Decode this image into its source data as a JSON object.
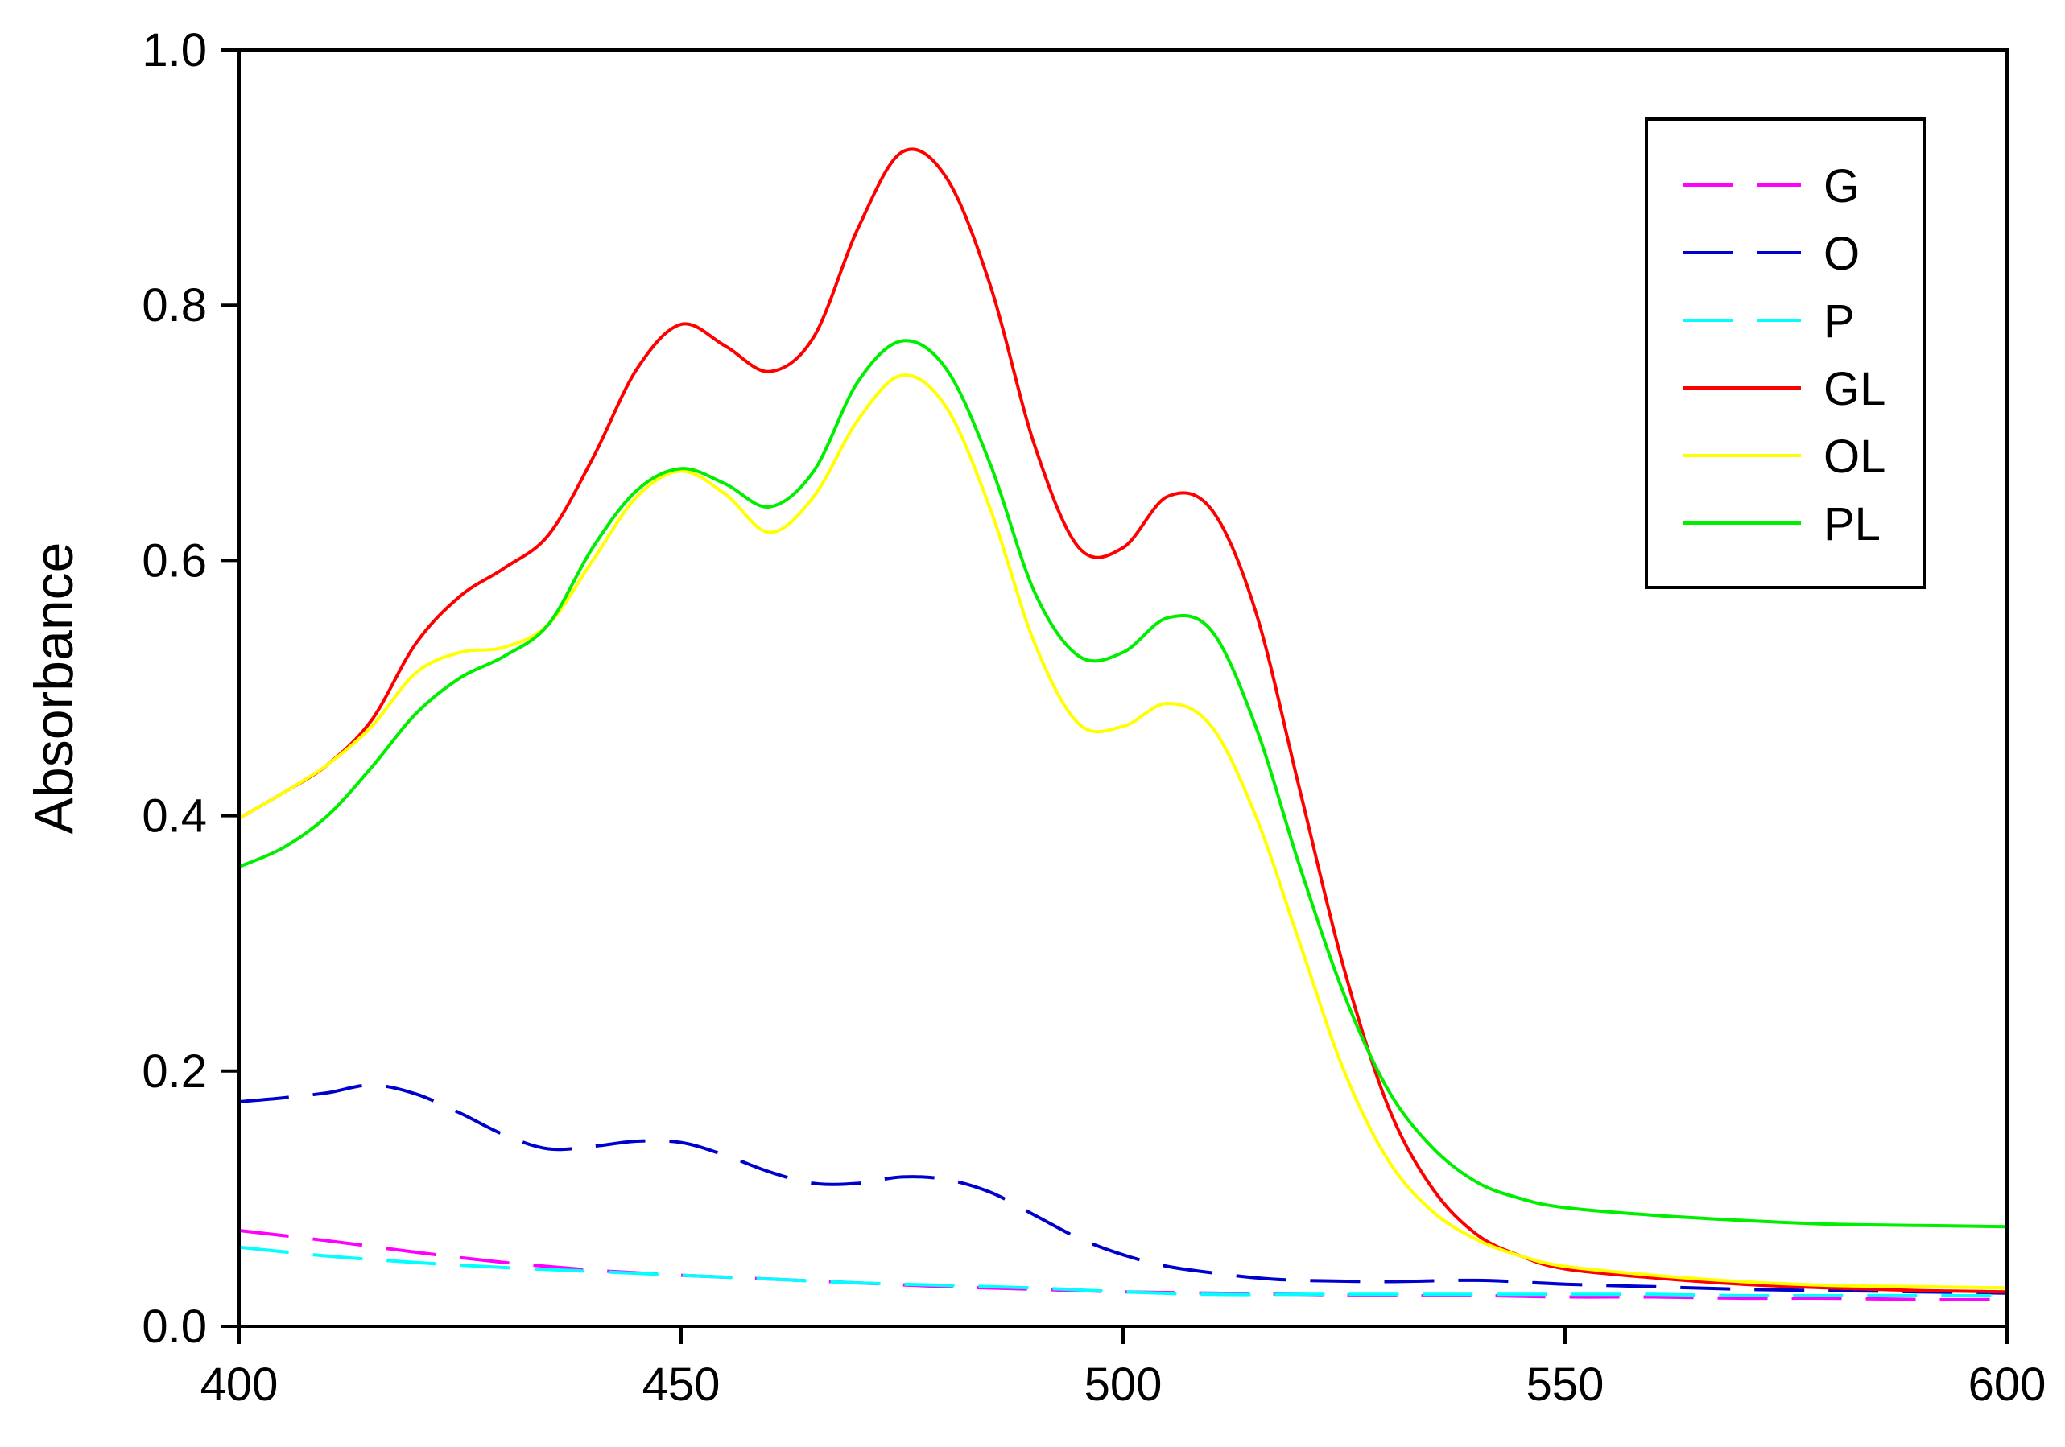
{
  "chart_data": {
    "type": "line",
    "title": "",
    "xlabel": "",
    "ylabel": "Absorbance",
    "xlim": [
      400,
      600
    ],
    "ylim": [
      0.0,
      1.0
    ],
    "x_ticks": [
      400,
      450,
      500,
      550,
      600
    ],
    "y_ticks": [
      "0.0",
      "0.2",
      "0.4",
      "0.6",
      "0.8",
      "1.0"
    ],
    "grid": false,
    "legend_position": "top-right",
    "series": [
      {
        "name": "G",
        "color": "#ff00ff",
        "dash": "dashed",
        "points": [
          [
            400,
            0.075
          ],
          [
            410,
            0.067
          ],
          [
            420,
            0.058
          ],
          [
            430,
            0.05
          ],
          [
            440,
            0.044
          ],
          [
            450,
            0.04
          ],
          [
            460,
            0.037
          ],
          [
            470,
            0.034
          ],
          [
            480,
            0.031
          ],
          [
            490,
            0.029
          ],
          [
            500,
            0.027
          ],
          [
            510,
            0.026
          ],
          [
            520,
            0.025
          ],
          [
            530,
            0.024
          ],
          [
            540,
            0.024
          ],
          [
            550,
            0.023
          ],
          [
            560,
            0.023
          ],
          [
            570,
            0.022
          ],
          [
            580,
            0.022
          ],
          [
            590,
            0.021
          ],
          [
            600,
            0.021
          ]
        ]
      },
      {
        "name": "O",
        "color": "#0000cc",
        "dash": "dashed",
        "points": [
          [
            400,
            0.176
          ],
          [
            405,
            0.179
          ],
          [
            410,
            0.183
          ],
          [
            415,
            0.189
          ],
          [
            420,
            0.182
          ],
          [
            425,
            0.167
          ],
          [
            430,
            0.15
          ],
          [
            435,
            0.139
          ],
          [
            440,
            0.141
          ],
          [
            445,
            0.145
          ],
          [
            450,
            0.144
          ],
          [
            455,
            0.134
          ],
          [
            460,
            0.121
          ],
          [
            465,
            0.112
          ],
          [
            470,
            0.112
          ],
          [
            475,
            0.117
          ],
          [
            480,
            0.115
          ],
          [
            485,
            0.105
          ],
          [
            490,
            0.087
          ],
          [
            495,
            0.069
          ],
          [
            500,
            0.056
          ],
          [
            505,
            0.047
          ],
          [
            510,
            0.042
          ],
          [
            515,
            0.038
          ],
          [
            520,
            0.036
          ],
          [
            530,
            0.035
          ],
          [
            540,
            0.036
          ],
          [
            550,
            0.033
          ],
          [
            560,
            0.031
          ],
          [
            570,
            0.029
          ],
          [
            580,
            0.028
          ],
          [
            590,
            0.027
          ],
          [
            600,
            0.026
          ]
        ]
      },
      {
        "name": "P",
        "color": "#00ffff",
        "dash": "dashed",
        "points": [
          [
            400,
            0.062
          ],
          [
            410,
            0.055
          ],
          [
            420,
            0.05
          ],
          [
            430,
            0.046
          ],
          [
            440,
            0.043
          ],
          [
            450,
            0.04
          ],
          [
            460,
            0.037
          ],
          [
            470,
            0.034
          ],
          [
            480,
            0.032
          ],
          [
            490,
            0.03
          ],
          [
            500,
            0.027
          ],
          [
            510,
            0.025
          ],
          [
            520,
            0.025
          ],
          [
            530,
            0.025
          ],
          [
            540,
            0.025
          ],
          [
            550,
            0.025
          ],
          [
            560,
            0.025
          ],
          [
            570,
            0.024
          ],
          [
            580,
            0.024
          ],
          [
            590,
            0.024
          ],
          [
            600,
            0.024
          ]
        ]
      },
      {
        "name": "GL",
        "color": "#ff0000",
        "dash": "solid",
        "points": [
          [
            400,
            0.398
          ],
          [
            405,
            0.418
          ],
          [
            410,
            0.44
          ],
          [
            415,
            0.475
          ],
          [
            420,
            0.535
          ],
          [
            425,
            0.572
          ],
          [
            430,
            0.594
          ],
          [
            435,
            0.62
          ],
          [
            440,
            0.68
          ],
          [
            445,
            0.75
          ],
          [
            450,
            0.785
          ],
          [
            455,
            0.768
          ],
          [
            460,
            0.748
          ],
          [
            465,
            0.775
          ],
          [
            470,
            0.86
          ],
          [
            475,
            0.92
          ],
          [
            480,
            0.9
          ],
          [
            485,
            0.815
          ],
          [
            490,
            0.69
          ],
          [
            495,
            0.61
          ],
          [
            500,
            0.61
          ],
          [
            505,
            0.65
          ],
          [
            510,
            0.64
          ],
          [
            515,
            0.56
          ],
          [
            520,
            0.42
          ],
          [
            525,
            0.28
          ],
          [
            530,
            0.172
          ],
          [
            535,
            0.108
          ],
          [
            540,
            0.072
          ],
          [
            545,
            0.055
          ],
          [
            550,
            0.045
          ],
          [
            560,
            0.038
          ],
          [
            570,
            0.033
          ],
          [
            580,
            0.03
          ],
          [
            590,
            0.028
          ],
          [
            600,
            0.027
          ]
        ]
      },
      {
        "name": "OL",
        "color": "#ffff00",
        "dash": "solid",
        "points": [
          [
            400,
            0.398
          ],
          [
            405,
            0.418
          ],
          [
            410,
            0.44
          ],
          [
            415,
            0.47
          ],
          [
            420,
            0.512
          ],
          [
            425,
            0.528
          ],
          [
            430,
            0.532
          ],
          [
            435,
            0.55
          ],
          [
            440,
            0.6
          ],
          [
            445,
            0.65
          ],
          [
            450,
            0.67
          ],
          [
            455,
            0.652
          ],
          [
            460,
            0.622
          ],
          [
            465,
            0.65
          ],
          [
            470,
            0.71
          ],
          [
            475,
            0.745
          ],
          [
            480,
            0.72
          ],
          [
            485,
            0.64
          ],
          [
            490,
            0.535
          ],
          [
            495,
            0.472
          ],
          [
            500,
            0.47
          ],
          [
            505,
            0.488
          ],
          [
            510,
            0.47
          ],
          [
            515,
            0.4
          ],
          [
            520,
            0.3
          ],
          [
            525,
            0.2
          ],
          [
            530,
            0.13
          ],
          [
            535,
            0.09
          ],
          [
            540,
            0.068
          ],
          [
            545,
            0.055
          ],
          [
            550,
            0.047
          ],
          [
            560,
            0.04
          ],
          [
            570,
            0.035
          ],
          [
            580,
            0.032
          ],
          [
            590,
            0.031
          ],
          [
            600,
            0.03
          ]
        ]
      },
      {
        "name": "PL",
        "color": "#00ee00",
        "dash": "solid",
        "points": [
          [
            400,
            0.36
          ],
          [
            405,
            0.375
          ],
          [
            410,
            0.4
          ],
          [
            415,
            0.438
          ],
          [
            420,
            0.48
          ],
          [
            425,
            0.508
          ],
          [
            430,
            0.525
          ],
          [
            435,
            0.55
          ],
          [
            440,
            0.61
          ],
          [
            445,
            0.655
          ],
          [
            450,
            0.672
          ],
          [
            455,
            0.66
          ],
          [
            460,
            0.642
          ],
          [
            465,
            0.67
          ],
          [
            470,
            0.74
          ],
          [
            475,
            0.772
          ],
          [
            480,
            0.75
          ],
          [
            485,
            0.675
          ],
          [
            490,
            0.575
          ],
          [
            495,
            0.525
          ],
          [
            500,
            0.528
          ],
          [
            505,
            0.555
          ],
          [
            510,
            0.545
          ],
          [
            515,
            0.47
          ],
          [
            520,
            0.36
          ],
          [
            525,
            0.26
          ],
          [
            530,
            0.185
          ],
          [
            535,
            0.14
          ],
          [
            540,
            0.113
          ],
          [
            545,
            0.1
          ],
          [
            550,
            0.093
          ],
          [
            560,
            0.087
          ],
          [
            570,
            0.083
          ],
          [
            580,
            0.08
          ],
          [
            590,
            0.079
          ],
          [
            600,
            0.078
          ]
        ]
      }
    ]
  }
}
